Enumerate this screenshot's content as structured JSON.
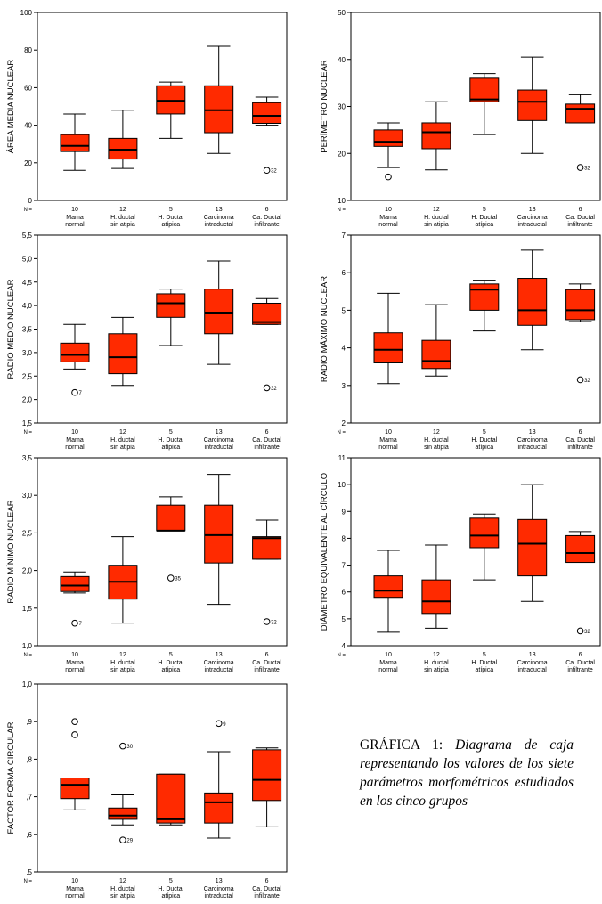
{
  "caption": {
    "lead": "GRÁFICA 1:",
    "text": "Diagrama de caja representando los valores de los siete parámetros morfométricos estudiados en los cinco grupos"
  },
  "colors": {
    "box_fill": "#ff2a00",
    "box_stroke": "#000000",
    "frame": "#000000"
  },
  "chart_data": [
    {
      "type": "boxplot",
      "ylabel": "ÁREA MEDIA NUCLEAR",
      "n_label": "N =",
      "ylim": [
        0,
        100
      ],
      "yticks": [
        "0",
        "20",
        "40",
        "60",
        "80",
        "100"
      ],
      "categories": [
        [
          "Mama",
          "normal"
        ],
        [
          "H. ductal",
          "sin atipia"
        ],
        [
          "H. Ductal",
          "atípica"
        ],
        [
          "Carcinoma",
          "intraductal"
        ],
        [
          "Ca. Ductal",
          "infiltrante"
        ]
      ],
      "n": [
        "10",
        "12",
        "5",
        "13",
        "6"
      ],
      "series": [
        {
          "min": 16,
          "q1": 26,
          "median": 29,
          "q3": 35,
          "max": 46
        },
        {
          "min": 17,
          "q1": 22,
          "median": 27,
          "q3": 33,
          "max": 48
        },
        {
          "min": 33,
          "q1": 46,
          "median": 53,
          "q3": 61,
          "max": 63
        },
        {
          "min": 25,
          "q1": 36,
          "median": 48,
          "q3": 61,
          "max": 82
        },
        {
          "min": 40,
          "q1": 41,
          "median": 45,
          "q3": 52,
          "max": 55
        }
      ],
      "outliers": [
        {
          "group": 4,
          "value": 16,
          "label": "32"
        }
      ]
    },
    {
      "type": "boxplot",
      "ylabel": "PERÍMETRO NUCLEAR",
      "n_label": "N =",
      "ylim": [
        10,
        50
      ],
      "yticks": [
        "10",
        "20",
        "30",
        "40",
        "50"
      ],
      "categories": [
        [
          "Mama",
          "normal"
        ],
        [
          "H. ductal",
          "sin atipia"
        ],
        [
          "H. Ductal",
          "atípica"
        ],
        [
          "Carcinoma",
          "intraductal"
        ],
        [
          "Ca. Ductal",
          "infiltrante"
        ]
      ],
      "n": [
        "10",
        "12",
        "5",
        "13",
        "6"
      ],
      "series": [
        {
          "min": 17,
          "q1": 21.5,
          "median": 22.5,
          "q3": 25,
          "max": 26.5
        },
        {
          "min": 16.5,
          "q1": 21,
          "median": 24.5,
          "q3": 26.5,
          "max": 31
        },
        {
          "min": 24,
          "q1": 31,
          "median": 31.5,
          "q3": 36,
          "max": 37
        },
        {
          "min": 20,
          "q1": 27,
          "median": 31,
          "q3": 33.5,
          "max": 40.5
        },
        {
          "min": 26.5,
          "q1": 26.5,
          "median": 29.5,
          "q3": 30.5,
          "max": 32.5
        }
      ],
      "outliers": [
        {
          "group": 0,
          "value": 15,
          "label": ""
        },
        {
          "group": 4,
          "value": 17,
          "label": "32"
        }
      ]
    },
    {
      "type": "boxplot",
      "ylabel": "RADIO MEDIO NUCLEAR",
      "n_label": "N =",
      "ylim": [
        1.5,
        5.5
      ],
      "yticks": [
        "1,5",
        "2,0",
        "2,5",
        "3,0",
        "3,5",
        "4,0",
        "4,5",
        "5,0",
        "5,5"
      ],
      "categories": [
        [
          "Mama",
          "normal"
        ],
        [
          "H. ductal",
          "sin atipia"
        ],
        [
          "H. Ductal",
          "atípica"
        ],
        [
          "Carcinoma",
          "intraductal"
        ],
        [
          "Ca. Ductal",
          "infiltrante"
        ]
      ],
      "n": [
        "10",
        "12",
        "5",
        "13",
        "6"
      ],
      "series": [
        {
          "min": 2.65,
          "q1": 2.8,
          "median": 2.95,
          "q3": 3.2,
          "max": 3.6
        },
        {
          "min": 2.3,
          "q1": 2.55,
          "median": 2.9,
          "q3": 3.4,
          "max": 3.75
        },
        {
          "min": 3.15,
          "q1": 3.75,
          "median": 4.05,
          "q3": 4.25,
          "max": 4.35
        },
        {
          "min": 2.75,
          "q1": 3.4,
          "median": 3.85,
          "q3": 4.35,
          "max": 4.95
        },
        {
          "min": 3.6,
          "q1": 3.6,
          "median": 3.65,
          "q3": 4.05,
          "max": 4.15
        }
      ],
      "outliers": [
        {
          "group": 0,
          "value": 2.15,
          "label": "7"
        },
        {
          "group": 4,
          "value": 2.25,
          "label": "32"
        }
      ]
    },
    {
      "type": "boxplot",
      "ylabel": "RADIO MÁXIMO NUCLEAR",
      "n_label": "N =",
      "ylim": [
        2,
        7
      ],
      "yticks": [
        "2",
        "3",
        "4",
        "5",
        "6",
        "7"
      ],
      "categories": [
        [
          "Mama",
          "normal"
        ],
        [
          "H. ductal",
          "sin atipia"
        ],
        [
          "H. Ductal",
          "atípica"
        ],
        [
          "Carcinoma",
          "intraductal"
        ],
        [
          "Ca. Ductal",
          "infiltrante"
        ]
      ],
      "n": [
        "10",
        "12",
        "5",
        "13",
        "6"
      ],
      "series": [
        {
          "min": 3.05,
          "q1": 3.6,
          "median": 3.95,
          "q3": 4.4,
          "max": 5.45
        },
        {
          "min": 3.25,
          "q1": 3.45,
          "median": 3.65,
          "q3": 4.2,
          "max": 5.15
        },
        {
          "min": 4.45,
          "q1": 5.0,
          "median": 5.55,
          "q3": 5.7,
          "max": 5.8
        },
        {
          "min": 3.95,
          "q1": 4.6,
          "median": 5.0,
          "q3": 5.85,
          "max": 6.6
        },
        {
          "min": 4.7,
          "q1": 4.75,
          "median": 5.0,
          "q3": 5.55,
          "max": 5.7
        }
      ],
      "outliers": [
        {
          "group": 4,
          "value": 3.15,
          "label": "32"
        }
      ]
    },
    {
      "type": "boxplot",
      "ylabel": "RADIO MÍNIMO NUCLEAR",
      "n_label": "N =",
      "ylim": [
        1.0,
        3.5
      ],
      "yticks": [
        "1,0",
        "1,5",
        "2,0",
        "2,5",
        "3,0",
        "3,5"
      ],
      "categories": [
        [
          "Mama",
          "normal"
        ],
        [
          "H. ductal",
          "sin atipia"
        ],
        [
          "H. Ductal",
          "atípica"
        ],
        [
          "Carcinoma",
          "intraductal"
        ],
        [
          "Ca. Ductal",
          "infiltrante"
        ]
      ],
      "n": [
        "10",
        "12",
        "5",
        "13",
        "6"
      ],
      "series": [
        {
          "min": 1.7,
          "q1": 1.72,
          "median": 1.8,
          "q3": 1.92,
          "max": 1.98
        },
        {
          "min": 1.3,
          "q1": 1.62,
          "median": 1.85,
          "q3": 2.07,
          "max": 2.45
        },
        {
          "min": 2.53,
          "q1": 2.53,
          "median": 2.53,
          "q3": 2.87,
          "max": 2.98
        },
        {
          "min": 1.55,
          "q1": 2.1,
          "median": 2.47,
          "q3": 2.87,
          "max": 3.28
        },
        {
          "min": 2.15,
          "q1": 2.15,
          "median": 2.43,
          "q3": 2.45,
          "max": 2.67
        }
      ],
      "outliers": [
        {
          "group": 0,
          "value": 1.3,
          "label": "7"
        },
        {
          "group": 2,
          "value": 1.9,
          "label": "35"
        },
        {
          "group": 4,
          "value": 1.32,
          "label": "32"
        }
      ]
    },
    {
      "type": "boxplot",
      "ylabel": "DIÁMETRO EQUIVALENTE AL CÍRCULO",
      "n_label": "N =",
      "ylim": [
        4,
        11
      ],
      "yticks": [
        "4",
        "5",
        "6",
        "7",
        "8",
        "9",
        "10",
        "11"
      ],
      "categories": [
        [
          "Mama",
          "normal"
        ],
        [
          "H. ductal",
          "sin atipia"
        ],
        [
          "H. Ductal",
          "atípica"
        ],
        [
          "Carcinoma",
          "intraductal"
        ],
        [
          "Ca. Ductal",
          "infiltrante"
        ]
      ],
      "n": [
        "10",
        "12",
        "5",
        "13",
        "6"
      ],
      "series": [
        {
          "min": 4.5,
          "q1": 5.8,
          "median": 6.05,
          "q3": 6.6,
          "max": 7.55
        },
        {
          "min": 4.65,
          "q1": 5.2,
          "median": 5.65,
          "q3": 6.45,
          "max": 7.75
        },
        {
          "min": 6.45,
          "q1": 7.65,
          "median": 8.1,
          "q3": 8.75,
          "max": 8.9
        },
        {
          "min": 5.65,
          "q1": 6.6,
          "median": 7.8,
          "q3": 8.7,
          "max": 10.0
        },
        {
          "min": 7.1,
          "q1": 7.1,
          "median": 7.45,
          "q3": 8.1,
          "max": 8.25
        }
      ],
      "outliers": [
        {
          "group": 4,
          "value": 4.55,
          "label": "32"
        }
      ]
    },
    {
      "type": "boxplot",
      "ylabel": "FACTOR FORMA CIRCULAR",
      "n_label": "N =",
      "ylim": [
        0.5,
        1.0
      ],
      "yticks": [
        ",5",
        ",6",
        ",7",
        ",8",
        ",9",
        "1,0"
      ],
      "categories": [
        [
          "Mama",
          "normal"
        ],
        [
          "H. ductal",
          "sin atipia"
        ],
        [
          "H. Ductal",
          "atípica"
        ],
        [
          "Carcinoma",
          "intraductal"
        ],
        [
          "Ca. Ductal",
          "infiltrante"
        ]
      ],
      "n": [
        "10",
        "12",
        "5",
        "13",
        "6"
      ],
      "series": [
        {
          "min": 0.665,
          "q1": 0.695,
          "median": 0.732,
          "q3": 0.75,
          "max": 0.75
        },
        {
          "min": 0.625,
          "q1": 0.64,
          "median": 0.65,
          "q3": 0.67,
          "max": 0.705
        },
        {
          "min": 0.625,
          "q1": 0.63,
          "median": 0.64,
          "q3": 0.76,
          "max": 0.76
        },
        {
          "min": 0.59,
          "q1": 0.63,
          "median": 0.685,
          "q3": 0.71,
          "max": 0.82
        },
        {
          "min": 0.62,
          "q1": 0.69,
          "median": 0.745,
          "q3": 0.825,
          "max": 0.83
        }
      ],
      "outliers": [
        {
          "group": 0,
          "value": 0.9,
          "label": ""
        },
        {
          "group": 0,
          "value": 0.865,
          "label": ""
        },
        {
          "group": 1,
          "value": 0.835,
          "label": "30"
        },
        {
          "group": 1,
          "value": 0.585,
          "label": "29"
        },
        {
          "group": 3,
          "value": 0.895,
          "label": "9"
        }
      ]
    }
  ]
}
